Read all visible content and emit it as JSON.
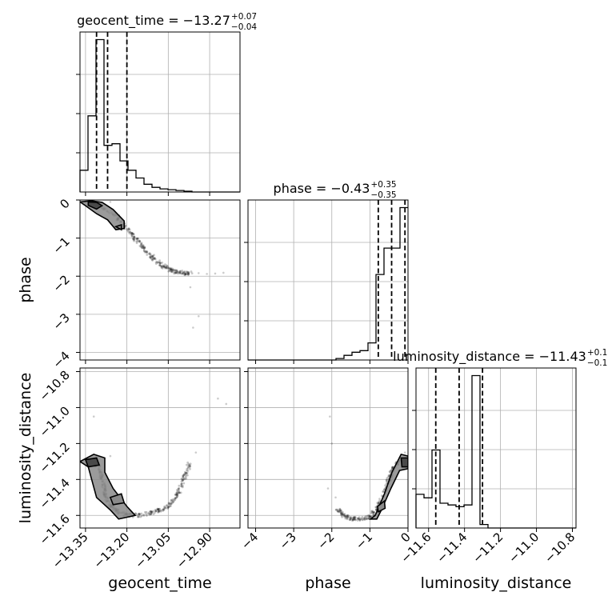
{
  "chart_data": {
    "type": "corner",
    "parameters": [
      "geocent_time",
      "phase",
      "luminosity_distance"
    ],
    "axis_labels": {
      "x": [
        "geocent_time",
        "phase",
        "luminosity_distance"
      ],
      "y": [
        "phase",
        "luminosity_distance"
      ]
    },
    "titles": [
      {
        "param": "geocent_time",
        "text": "geocent_time = −13.27",
        "upper": "+0.07",
        "lower": "−0.04"
      },
      {
        "param": "phase",
        "text": "phase = −0.43",
        "upper": "+0.35",
        "lower": "−0.35"
      },
      {
        "param": "luminosity_distance",
        "text": "luminosity_distance = −11.43",
        "upper": "+0.13",
        "lower": "−0.13"
      }
    ],
    "ranges": {
      "geocent_time": [
        -13.37,
        -12.79
      ],
      "phase": [
        -4.2,
        0.0
      ],
      "luminosity_distance": [
        -11.67,
        -10.78
      ]
    },
    "ticks": {
      "geocent_time": {
        "values": [
          -13.35,
          -13.2,
          -13.05,
          -12.9
        ],
        "labels": [
          "−13.35",
          "−13.20",
          "−13.05",
          "−12.90"
        ]
      },
      "phase": {
        "values": [
          -4,
          -3,
          -2,
          -1,
          0
        ],
        "labels": [
          "−4",
          "−3",
          "−2",
          "−1",
          "0"
        ]
      },
      "luminosity_distance": {
        "values": [
          -11.6,
          -11.4,
          -11.2,
          -11.0,
          -10.8
        ],
        "labels": [
          "−11.6",
          "−11.4",
          "−11.2",
          "−11.0",
          "−10.8"
        ]
      }
    },
    "quantiles": {
      "geocent_time": [
        -13.31,
        -13.27,
        -13.2
      ],
      "phase": [
        -0.78,
        -0.43,
        -0.08
      ],
      "luminosity_distance": [
        -11.56,
        -11.43,
        -11.3
      ]
    },
    "histograms": {
      "geocent_time": {
        "edges": [
          -13.37,
          -13.341,
          -13.312,
          -13.283,
          -13.254,
          -13.225,
          -13.196,
          -13.167,
          -13.138,
          -13.109,
          -13.08,
          -13.051,
          -13.022,
          -12.993,
          -12.964,
          -12.935,
          -12.906,
          -12.877,
          -12.848,
          -12.819,
          -12.79
        ],
        "counts": [
          14,
          49,
          98,
          30,
          31,
          20,
          14,
          9,
          5,
          3,
          2,
          1.5,
          1,
          0.5,
          0,
          0,
          0,
          0,
          0,
          0
        ]
      },
      "phase": {
        "edges": [
          -4.2,
          -3.99,
          -3.78,
          -3.57,
          -3.36,
          -3.15,
          -2.94,
          -2.73,
          -2.52,
          -2.31,
          -2.1,
          -1.89,
          -1.68,
          -1.47,
          -1.26,
          -1.05,
          -0.84,
          -0.63,
          -0.42,
          -0.21,
          0.0
        ],
        "counts": [
          0,
          0,
          0,
          0,
          0,
          0,
          0,
          0,
          0,
          0,
          0,
          1,
          3,
          5,
          6,
          11,
          55,
          72,
          72,
          98
        ]
      },
      "luminosity_distance": {
        "edges": [
          -11.67,
          -11.6255,
          -11.581,
          -11.5365,
          -11.492,
          -11.4475,
          -11.403,
          -11.3585,
          -11.314,
          -11.2695,
          -11.225,
          -11.1805,
          -11.136,
          -11.0915,
          -11.047,
          -11.0025,
          -10.958,
          -10.9135,
          -10.869,
          -10.8245,
          -10.78
        ],
        "counts": [
          19,
          17,
          44,
          14,
          13,
          12,
          13,
          86,
          2,
          0,
          0,
          0,
          0,
          0,
          0,
          0,
          0,
          0,
          0,
          0
        ]
      }
    },
    "pairs": [
      {
        "x": "geocent_time",
        "y": "phase",
        "core": [
          [
            -13.33,
            -0.04
          ],
          [
            -13.3,
            -0.16
          ],
          [
            -13.24,
            -0.42
          ],
          [
            -13.21,
            -0.66
          ],
          [
            -13.18,
            -0.93
          ],
          [
            -13.15,
            -1.18
          ],
          [
            -13.12,
            -1.42
          ],
          [
            -13.09,
            -1.62
          ],
          [
            -13.06,
            -1.77
          ],
          [
            -13.03,
            -1.87
          ],
          [
            -13.0,
            -1.91
          ],
          [
            -12.97,
            -1.93
          ]
        ],
        "sparse": [
          [
            -12.94,
            -1.92
          ],
          [
            -12.91,
            -1.94
          ],
          [
            -12.88,
            -1.93
          ],
          [
            -12.85,
            -1.91
          ],
          [
            -12.97,
            -2.29
          ],
          [
            -12.96,
            -3.35
          ],
          [
            -12.94,
            -3.05
          ],
          [
            -13.26,
            -0.05
          ]
        ],
        "contour_outer": [
          [
            -13.37,
            -0.05
          ],
          [
            -13.33,
            -0.02
          ],
          [
            -13.29,
            -0.06
          ],
          [
            -13.25,
            -0.25
          ],
          [
            -13.21,
            -0.55
          ],
          [
            -13.21,
            -0.75
          ],
          [
            -13.24,
            -0.78
          ],
          [
            -13.27,
            -0.52
          ],
          [
            -13.31,
            -0.36
          ],
          [
            -13.35,
            -0.15
          ],
          [
            -13.37,
            -0.05
          ]
        ],
        "contour_inner": [
          [
            -13.34,
            -0.05
          ],
          [
            -13.31,
            -0.06
          ],
          [
            -13.29,
            -0.15
          ],
          [
            -13.31,
            -0.24
          ],
          [
            -13.34,
            -0.14
          ],
          [
            -13.34,
            -0.05
          ]
        ],
        "contour_mid": [
          [
            -13.24,
            -0.7
          ],
          [
            -13.22,
            -0.65
          ],
          [
            -13.22,
            -0.78
          ],
          [
            -13.24,
            -0.7
          ]
        ]
      },
      {
        "x": "geocent_time",
        "y": "luminosity_distance",
        "core": [
          [
            -13.33,
            -11.3
          ],
          [
            -13.3,
            -11.34
          ],
          [
            -13.29,
            -11.4
          ],
          [
            -13.28,
            -11.47
          ],
          [
            -13.27,
            -11.53
          ],
          [
            -13.24,
            -11.57
          ],
          [
            -13.2,
            -11.6
          ],
          [
            -13.15,
            -11.6
          ],
          [
            -13.1,
            -11.58
          ],
          [
            -13.06,
            -11.56
          ],
          [
            -13.03,
            -11.52
          ],
          [
            -13.01,
            -11.46
          ],
          [
            -12.99,
            -11.38
          ],
          [
            -12.97,
            -11.3
          ]
        ],
        "sparse": [
          [
            -13.32,
            -11.05
          ],
          [
            -12.87,
            -10.95
          ],
          [
            -12.84,
            -10.98
          ],
          [
            -12.95,
            -11.25
          ],
          [
            -13.26,
            -11.27
          ]
        ],
        "contour_outer": [
          [
            -13.37,
            -11.3
          ],
          [
            -13.32,
            -11.26
          ],
          [
            -13.28,
            -11.28
          ],
          [
            -13.28,
            -11.36
          ],
          [
            -13.25,
            -11.45
          ],
          [
            -13.2,
            -11.55
          ],
          [
            -13.17,
            -11.6
          ],
          [
            -13.23,
            -11.62
          ],
          [
            -13.26,
            -11.57
          ],
          [
            -13.31,
            -11.5
          ],
          [
            -13.34,
            -11.33
          ],
          [
            -13.37,
            -11.3
          ]
        ],
        "contour_inner": [
          [
            -13.35,
            -11.29
          ],
          [
            -13.31,
            -11.28
          ],
          [
            -13.3,
            -11.32
          ],
          [
            -13.34,
            -11.33
          ],
          [
            -13.35,
            -11.29
          ]
        ],
        "contour_mid": [
          [
            -13.26,
            -11.5
          ],
          [
            -13.22,
            -11.48
          ],
          [
            -13.21,
            -11.53
          ],
          [
            -13.25,
            -11.54
          ],
          [
            -13.26,
            -11.5
          ]
        ]
      },
      {
        "x": "phase",
        "y": "luminosity_distance",
        "core": [
          [
            -1.85,
            -11.56
          ],
          [
            -1.7,
            -11.6
          ],
          [
            -1.5,
            -11.62
          ],
          [
            -1.25,
            -11.62
          ],
          [
            -1.0,
            -11.61
          ],
          [
            -0.8,
            -11.56
          ],
          [
            -0.65,
            -11.48
          ],
          [
            -0.5,
            -11.4
          ],
          [
            -0.4,
            -11.34
          ],
          [
            -0.25,
            -11.3
          ]
        ],
        "sparse": [
          [
            -2.1,
            -11.45
          ],
          [
            -2.05,
            -11.05
          ],
          [
            -2.0,
            -11.2
          ],
          [
            -1.9,
            -11.5
          ],
          [
            -0.08,
            -11.25
          ]
        ],
        "contour_outer": [
          [
            -0.98,
            -11.62
          ],
          [
            -0.86,
            -11.6
          ],
          [
            -0.62,
            -11.48
          ],
          [
            -0.42,
            -11.36
          ],
          [
            -0.18,
            -11.26
          ],
          [
            0.0,
            -11.27
          ],
          [
            0.0,
            -11.34
          ],
          [
            -0.22,
            -11.35
          ],
          [
            -0.45,
            -11.45
          ],
          [
            -0.7,
            -11.57
          ],
          [
            -0.82,
            -11.62
          ],
          [
            -0.98,
            -11.62
          ]
        ],
        "contour_inner": [
          [
            -0.18,
            -11.28
          ],
          [
            0.0,
            -11.28
          ],
          [
            0.0,
            -11.33
          ],
          [
            -0.16,
            -11.33
          ],
          [
            -0.18,
            -11.28
          ]
        ],
        "contour_mid": [
          [
            -0.8,
            -11.55
          ],
          [
            -0.62,
            -11.52
          ],
          [
            -0.6,
            -11.56
          ],
          [
            -0.78,
            -11.58
          ],
          [
            -0.8,
            -11.55
          ]
        ]
      }
    ]
  }
}
